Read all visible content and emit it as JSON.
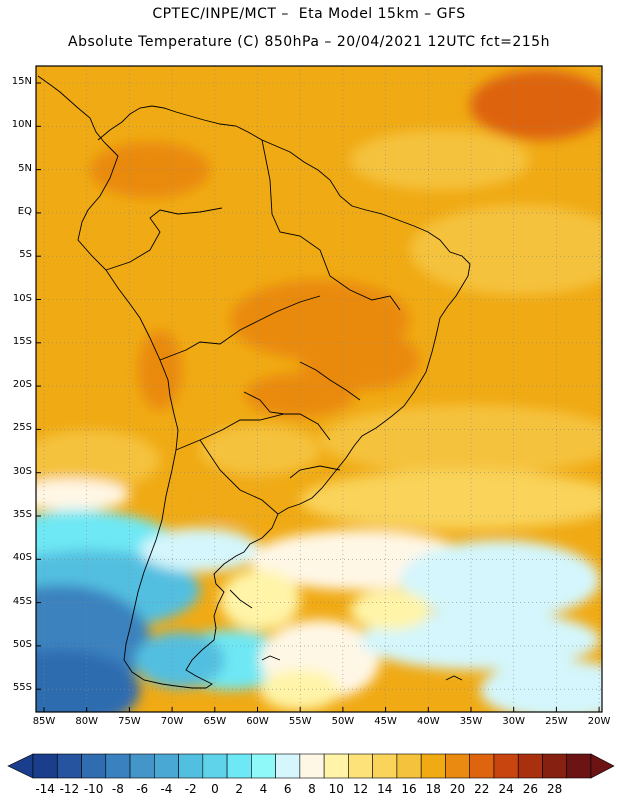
{
  "title": {
    "line1": "CPTEC/INPE/MCT –  Eta Model 15km – GFS",
    "line2": "Absolute Temperature (C) 850hPa – 20/04/2021 12UTC fct=215h"
  },
  "map": {
    "lat_labels": [
      "15N",
      "10N",
      "5N",
      "EQ",
      "5S",
      "10S",
      "15S",
      "20S",
      "25S",
      "30S",
      "35S",
      "40S",
      "45S",
      "50S",
      "55S"
    ],
    "lon_labels": [
      "85W",
      "80W",
      "75W",
      "70W",
      "65W",
      "60W",
      "55W",
      "50W",
      "45W",
      "40W",
      "35W",
      "30W",
      "25W",
      "20W"
    ]
  },
  "colorbar": {
    "labels": [
      "-14",
      "-12",
      "-10",
      "-8",
      "-6",
      "-4",
      "-2",
      "0",
      "2",
      "4",
      "6",
      "8",
      "10",
      "12",
      "14",
      "16",
      "18",
      "20",
      "22",
      "24",
      "26",
      "28"
    ],
    "colors": [
      "#1a3e8c",
      "#26549e",
      "#2f6cb0",
      "#3a82bf",
      "#4496c9",
      "#4aa9d4",
      "#52bfe0",
      "#5fd3ea",
      "#6ee8f4",
      "#8ff8f8",
      "#d4f6fc",
      "#fff7e6",
      "#fff4a8",
      "#fde27a",
      "#f9d35a",
      "#f5c23e",
      "#f0aa14",
      "#ea8a10",
      "#de6410",
      "#c84510",
      "#a8300e",
      "#862010",
      "#6c1414"
    ]
  }
}
